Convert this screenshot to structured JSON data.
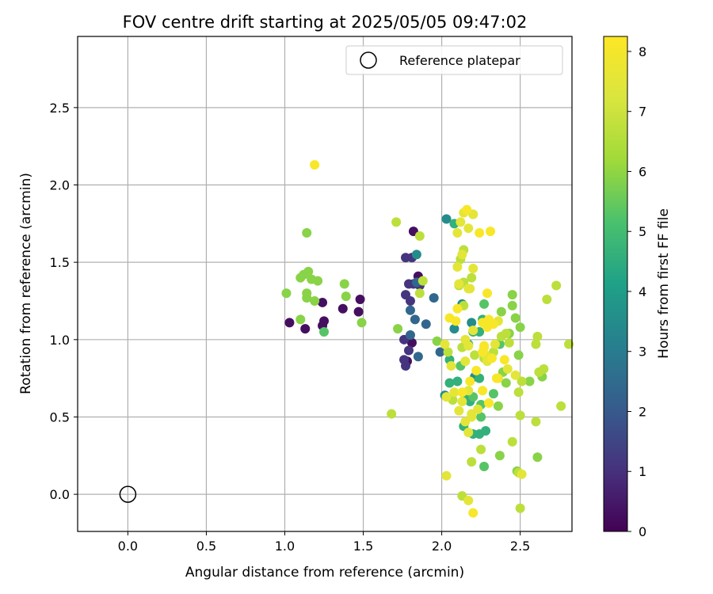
{
  "chart_data": {
    "type": "scatter",
    "title": "FOV centre drift starting at 2025/05/05 09:47:02",
    "xlabel": "Angular distance from reference (arcmin)",
    "ylabel": "Rotation from reference (arcmin)",
    "xlim": [
      -0.32,
      2.83
    ],
    "ylim": [
      -0.24,
      2.96
    ],
    "x_ticks": [
      "0.0",
      "0.5",
      "1.0",
      "1.5",
      "2.0",
      "2.5"
    ],
    "y_ticks": [
      "0.0",
      "0.5",
      "1.0",
      "1.5",
      "2.0",
      "2.5"
    ],
    "grid": true,
    "legend": {
      "position": "top-right",
      "entries": [
        "Reference platepar"
      ]
    },
    "reference_point": {
      "x": 0.0,
      "y": 0.0
    },
    "colorbar": {
      "label": "Hours from first FF file",
      "range": [
        0,
        8.25
      ],
      "ticks": [
        "0",
        "1",
        "2",
        "3",
        "4",
        "5",
        "6",
        "7",
        "8"
      ],
      "colormap": "viridis"
    },
    "series": [
      {
        "values": [
          [
            1.03,
            1.11,
            0.3
          ],
          [
            1.13,
            1.07,
            0.3
          ],
          [
            1.24,
            1.24,
            0.3
          ],
          [
            1.24,
            1.09,
            0.3
          ],
          [
            1.25,
            1.12,
            0.3
          ],
          [
            1.37,
            1.2,
            0.3
          ],
          [
            1.48,
            1.26,
            0.3
          ],
          [
            1.47,
            1.18,
            0.3
          ],
          [
            1.78,
            0.86,
            0.3
          ],
          [
            1.81,
            0.98,
            0.3
          ],
          [
            1.82,
            1.7,
            0.3
          ],
          [
            1.85,
            1.41,
            0.3
          ],
          [
            1.77,
            1.53,
            1.1
          ],
          [
            1.81,
            1.53,
            1.1
          ],
          [
            1.77,
            1.29,
            1.1
          ],
          [
            1.8,
            1.25,
            1.1
          ],
          [
            1.79,
            1.36,
            1.1
          ],
          [
            1.82,
            1.36,
            1.1
          ],
          [
            1.76,
            1.0,
            1.1
          ],
          [
            1.79,
            0.93,
            1.1
          ],
          [
            1.76,
            0.87,
            1.1
          ],
          [
            1.77,
            0.83,
            1.1
          ],
          [
            1.86,
            1.35,
            1.1
          ],
          [
            1.8,
            1.19,
            2.4
          ],
          [
            1.83,
            1.13,
            2.4
          ],
          [
            1.85,
            0.89,
            2.4
          ],
          [
            1.9,
            1.1,
            2.4
          ],
          [
            1.95,
            1.27,
            2.4
          ],
          [
            1.99,
            0.92,
            2.4
          ],
          [
            1.8,
            1.03,
            2.4
          ],
          [
            1.84,
            1.37,
            2.4
          ],
          [
            1.84,
            1.55,
            3.5
          ],
          [
            2.03,
            1.78,
            3.5
          ],
          [
            2.13,
            1.23,
            3.5
          ],
          [
            2.08,
            1.07,
            3.5
          ],
          [
            2.19,
            1.11,
            3.5
          ],
          [
            2.21,
            0.76,
            3.5
          ],
          [
            2.02,
            0.64,
            3.5
          ],
          [
            2.05,
            0.72,
            4.6
          ],
          [
            2.1,
            0.73,
            4.6
          ],
          [
            2.15,
            0.64,
            4.6
          ],
          [
            2.18,
            0.6,
            4.6
          ],
          [
            2.14,
            0.44,
            4.6
          ],
          [
            2.2,
            0.39,
            4.6
          ],
          [
            2.24,
            0.39,
            4.6
          ],
          [
            2.28,
            0.41,
            4.6
          ],
          [
            2.17,
            0.97,
            4.6
          ],
          [
            2.2,
            1.05,
            4.6
          ],
          [
            2.24,
            1.05,
            4.6
          ],
          [
            2.26,
            1.13,
            4.6
          ],
          [
            2.08,
            1.75,
            4.6
          ],
          [
            2.24,
            0.75,
            4.6
          ],
          [
            2.05,
            0.87,
            4.6
          ],
          [
            2.2,
            0.63,
            5.3
          ],
          [
            2.25,
            0.5,
            5.3
          ],
          [
            2.25,
            0.58,
            5.3
          ],
          [
            2.12,
            0.83,
            5.3
          ],
          [
            2.27,
            1.23,
            5.3
          ],
          [
            2.33,
            0.65,
            5.3
          ],
          [
            1.25,
            1.05,
            5.3
          ],
          [
            2.27,
            0.18,
            5.3
          ],
          [
            2.37,
            0.97,
            5.3
          ],
          [
            1.01,
            1.3,
            5.9
          ],
          [
            1.1,
            1.4,
            5.9
          ],
          [
            1.12,
            1.42,
            5.9
          ],
          [
            1.14,
            1.3,
            5.9
          ],
          [
            1.15,
            1.44,
            5.9
          ],
          [
            1.17,
            1.39,
            5.9
          ],
          [
            1.19,
            1.25,
            5.9
          ],
          [
            1.21,
            1.38,
            5.9
          ],
          [
            1.14,
            1.69,
            5.9
          ],
          [
            1.14,
            1.27,
            5.9
          ],
          [
            1.1,
            1.13,
            5.9
          ],
          [
            1.38,
            1.36,
            5.9
          ],
          [
            1.39,
            1.28,
            5.9
          ],
          [
            1.49,
            1.11,
            5.9
          ],
          [
            1.72,
            1.07,
            5.9
          ],
          [
            1.97,
            0.99,
            5.9
          ],
          [
            2.41,
            0.72,
            5.9
          ],
          [
            2.45,
            1.29,
            5.9
          ],
          [
            2.45,
            1.22,
            5.9
          ],
          [
            2.47,
            1.14,
            5.9
          ],
          [
            2.5,
            1.08,
            5.9
          ],
          [
            2.38,
            1.18,
            5.9
          ],
          [
            2.43,
            1.04,
            5.9
          ],
          [
            2.49,
            0.9,
            5.9
          ],
          [
            2.37,
            0.25,
            5.9
          ],
          [
            2.61,
            0.24,
            5.9
          ],
          [
            2.48,
            0.15,
            5.9
          ],
          [
            2.64,
            0.76,
            5.9
          ],
          [
            2.56,
            0.73,
            5.9
          ],
          [
            2.39,
            0.79,
            5.9
          ],
          [
            2.36,
            0.57,
            5.9
          ],
          [
            2.11,
            1.35,
            6.7
          ],
          [
            2.14,
            1.37,
            6.7
          ],
          [
            2.19,
            1.4,
            6.7
          ],
          [
            2.12,
            1.52,
            6.7
          ],
          [
            2.14,
            1.58,
            6.7
          ],
          [
            2.2,
            1.81,
            6.7
          ],
          [
            2.14,
            1.22,
            6.7
          ],
          [
            2.04,
            0.92,
            6.7
          ],
          [
            2.13,
            0.95,
            6.7
          ],
          [
            2.21,
            0.9,
            6.7
          ],
          [
            2.27,
            0.88,
            6.7
          ],
          [
            2.33,
            0.92,
            6.7
          ],
          [
            2.38,
            1.02,
            6.7
          ],
          [
            2.41,
            1.04,
            6.7
          ],
          [
            2.43,
            0.98,
            6.7
          ],
          [
            2.49,
            0.66,
            6.7
          ],
          [
            2.51,
            0.73,
            6.7
          ],
          [
            2.5,
            0.51,
            6.7
          ],
          [
            2.6,
            0.47,
            6.7
          ],
          [
            2.45,
            0.34,
            6.7
          ],
          [
            2.49,
            0.14,
            6.7
          ],
          [
            2.5,
            -0.09,
            6.7
          ],
          [
            2.6,
            0.97,
            6.7
          ],
          [
            2.61,
            1.02,
            6.7
          ],
          [
            2.62,
            0.79,
            6.7
          ],
          [
            2.65,
            0.81,
            6.7
          ],
          [
            2.67,
            1.26,
            6.7
          ],
          [
            2.73,
            1.35,
            6.7
          ],
          [
            2.76,
            0.57,
            6.7
          ],
          [
            2.81,
            0.97,
            6.7
          ],
          [
            1.86,
            1.67,
            6.7
          ],
          [
            1.71,
            1.76,
            6.7
          ],
          [
            1.68,
            0.52,
            6.7
          ],
          [
            1.86,
            1.3,
            6.7
          ],
          [
            1.88,
            1.38,
            6.7
          ],
          [
            2.19,
            0.21,
            6.7
          ],
          [
            2.25,
            0.29,
            6.7
          ],
          [
            2.13,
            -0.01,
            6.7
          ],
          [
            2.07,
            0.61,
            6.7
          ],
          [
            2.1,
            1.69,
            7.5
          ],
          [
            2.12,
            1.76,
            7.5
          ],
          [
            2.14,
            1.82,
            7.5
          ],
          [
            2.17,
            1.72,
            7.5
          ],
          [
            2.2,
            1.81,
            7.5
          ],
          [
            2.17,
            1.33,
            7.5
          ],
          [
            2.11,
            1.36,
            7.5
          ],
          [
            2.1,
            1.47,
            7.5
          ],
          [
            2.13,
            1.55,
            7.5
          ],
          [
            2.18,
            1.33,
            7.5
          ],
          [
            2.2,
            1.46,
            7.5
          ],
          [
            2.02,
            0.97,
            7.5
          ],
          [
            2.06,
            0.83,
            7.5
          ],
          [
            2.03,
            0.63,
            7.5
          ],
          [
            2.08,
            0.66,
            7.5
          ],
          [
            2.11,
            0.54,
            7.5
          ],
          [
            2.13,
            0.6,
            7.5
          ],
          [
            2.15,
            0.47,
            7.5
          ],
          [
            2.17,
            0.4,
            7.5
          ],
          [
            2.19,
            0.52,
            7.5
          ],
          [
            2.23,
            0.55,
            7.5
          ],
          [
            2.17,
            0.96,
            7.5
          ],
          [
            2.15,
            0.86,
            7.5
          ],
          [
            2.28,
            0.9,
            7.5
          ],
          [
            2.29,
            0.86,
            7.5
          ],
          [
            2.34,
            0.97,
            7.5
          ],
          [
            2.36,
            1.12,
            7.5
          ],
          [
            2.42,
            0.81,
            7.5
          ],
          [
            2.47,
            0.77,
            7.5
          ],
          [
            2.51,
            0.13,
            7.5
          ],
          [
            2.17,
            -0.04,
            7.5
          ],
          [
            2.03,
            0.12,
            7.5
          ],
          [
            2.19,
            0.5,
            7.5
          ],
          [
            2.15,
            1.0,
            7.5
          ],
          [
            2.2,
            1.06,
            7.5
          ],
          [
            2.36,
            0.75,
            7.5
          ],
          [
            2.17,
            0.67,
            7.5
          ],
          [
            1.19,
            2.13,
            8.1
          ],
          [
            2.16,
            1.84,
            8.1
          ],
          [
            2.24,
            1.69,
            8.1
          ],
          [
            2.31,
            1.7,
            8.1
          ],
          [
            2.29,
            1.3,
            8.1
          ],
          [
            2.05,
            1.14,
            8.1
          ],
          [
            2.09,
            1.12,
            8.1
          ],
          [
            2.1,
            1.2,
            8.1
          ],
          [
            2.26,
            1.11,
            8.1
          ],
          [
            2.3,
            1.13,
            8.1
          ],
          [
            2.33,
            1.1,
            8.1
          ],
          [
            2.29,
            1.08,
            8.1
          ],
          [
            2.27,
            0.95,
            8.1
          ],
          [
            2.26,
            0.92,
            8.1
          ],
          [
            2.32,
            0.88,
            8.1
          ],
          [
            2.4,
            0.87,
            8.1
          ],
          [
            2.22,
            0.8,
            8.1
          ],
          [
            2.26,
            0.67,
            8.1
          ],
          [
            2.13,
            0.66,
            8.1
          ],
          [
            2.18,
            0.73,
            8.1
          ],
          [
            2.3,
            0.59,
            8.1
          ],
          [
            2.2,
            -0.12,
            8.1
          ],
          [
            2.27,
            0.96,
            8.1
          ],
          [
            2.35,
            0.75,
            8.1
          ]
        ]
      }
    ]
  }
}
